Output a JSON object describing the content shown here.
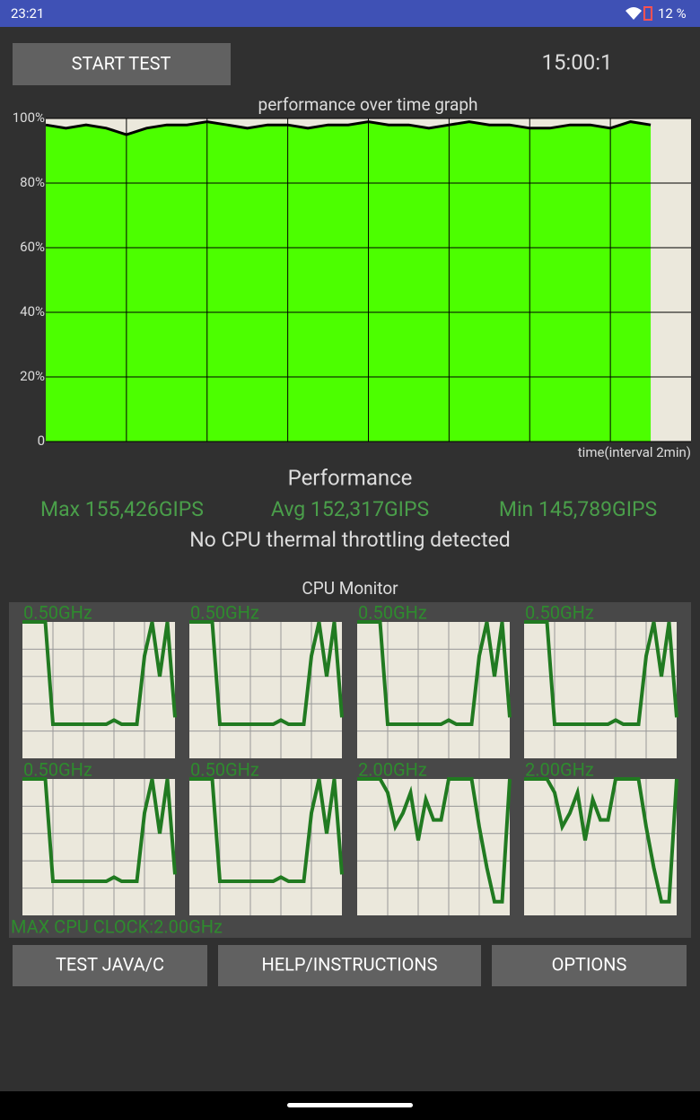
{
  "status_bar": {
    "time": "23:21",
    "battery": "12 %"
  },
  "header": {
    "start_button": "START TEST",
    "timer": "15:00:1"
  },
  "performance_chart": {
    "type": "area",
    "title": "performance over time graph",
    "x_label": "time(interval 2min)",
    "ylim": [
      0,
      100
    ],
    "yticks": [
      {
        "value": 0,
        "label": "0"
      },
      {
        "value": 20,
        "label": "20%"
      },
      {
        "value": 40,
        "label": "40%"
      },
      {
        "value": 60,
        "label": "60%"
      },
      {
        "value": 80,
        "label": "80%"
      },
      {
        "value": 100,
        "label": "100%"
      }
    ],
    "xlim": [
      0,
      16
    ],
    "x_gridlines": [
      2,
      4,
      6,
      8,
      10,
      12,
      14
    ],
    "grid": true,
    "color": "#4cff00",
    "line_color": "#000000",
    "x": [
      0,
      0.5,
      1,
      1.5,
      2,
      2.5,
      3,
      3.5,
      4,
      4.5,
      5,
      5.5,
      6,
      6.5,
      7,
      7.5,
      8,
      8.5,
      9,
      9.5,
      10,
      10.5,
      11,
      11.5,
      12,
      12.5,
      13,
      13.5,
      14,
      14.5,
      15
    ],
    "values": [
      98,
      97,
      98,
      97,
      95,
      97,
      98,
      98,
      99,
      98,
      97,
      98,
      98,
      97,
      98,
      98,
      99,
      98,
      98,
      97,
      98,
      99,
      98,
      98,
      97,
      97,
      98,
      98,
      97,
      99,
      98
    ]
  },
  "performance_stats": {
    "title": "Performance",
    "max": "Max 155,426GIPS",
    "avg": "Avg 152,317GIPS",
    "min": "Min 145,789GIPS",
    "throttling": "No CPU thermal throttling detected"
  },
  "cpu_monitor": {
    "title": "CPU Monitor",
    "ylim": [
      0,
      100
    ],
    "xlim": [
      0,
      20
    ],
    "color": "#217a21",
    "x": [
      0,
      1,
      2,
      3,
      4,
      5,
      6,
      7,
      8,
      9,
      10,
      11,
      12,
      13,
      14,
      15,
      16,
      17,
      18,
      19,
      20
    ],
    "cores": [
      {
        "label": "0.50GHz",
        "values": [
          100,
          100,
          100,
          100,
          25,
          25,
          25,
          25,
          25,
          25,
          25,
          25,
          28,
          25,
          25,
          25,
          75,
          100,
          60,
          100,
          30
        ]
      },
      {
        "label": "0.50GHz",
        "values": [
          100,
          100,
          100,
          100,
          25,
          25,
          25,
          25,
          25,
          25,
          25,
          25,
          28,
          25,
          25,
          25,
          75,
          100,
          60,
          100,
          30
        ]
      },
      {
        "label": "0.50GHz",
        "values": [
          100,
          100,
          100,
          100,
          25,
          25,
          25,
          25,
          25,
          25,
          25,
          25,
          28,
          25,
          25,
          25,
          75,
          100,
          60,
          100,
          30
        ]
      },
      {
        "label": "0.50GHz",
        "values": [
          100,
          100,
          100,
          100,
          25,
          25,
          25,
          25,
          25,
          25,
          25,
          25,
          28,
          25,
          25,
          25,
          75,
          100,
          60,
          100,
          30
        ]
      },
      {
        "label": "0.50GHz",
        "values": [
          100,
          100,
          100,
          100,
          25,
          25,
          25,
          25,
          25,
          25,
          25,
          25,
          28,
          25,
          25,
          25,
          75,
          100,
          60,
          100,
          30
        ]
      },
      {
        "label": "0.50GHz",
        "values": [
          100,
          100,
          100,
          100,
          25,
          25,
          25,
          25,
          25,
          25,
          25,
          25,
          28,
          25,
          25,
          25,
          75,
          100,
          60,
          100,
          30
        ]
      },
      {
        "label": "2.00GHz",
        "values": [
          100,
          100,
          100,
          100,
          90,
          65,
          75,
          90,
          55,
          85,
          70,
          70,
          100,
          100,
          100,
          100,
          65,
          35,
          10,
          10,
          100
        ]
      },
      {
        "label": "2.00GHz",
        "values": [
          100,
          100,
          100,
          100,
          90,
          65,
          75,
          90,
          55,
          85,
          70,
          70,
          100,
          100,
          100,
          100,
          65,
          35,
          10,
          10,
          100
        ]
      }
    ],
    "max_clock": "MAX CPU CLOCK:2.00GHz"
  },
  "buttons": {
    "test": "TEST JAVA/C",
    "help": "HELP/INSTRUCTIONS",
    "options": "OPTIONS"
  }
}
